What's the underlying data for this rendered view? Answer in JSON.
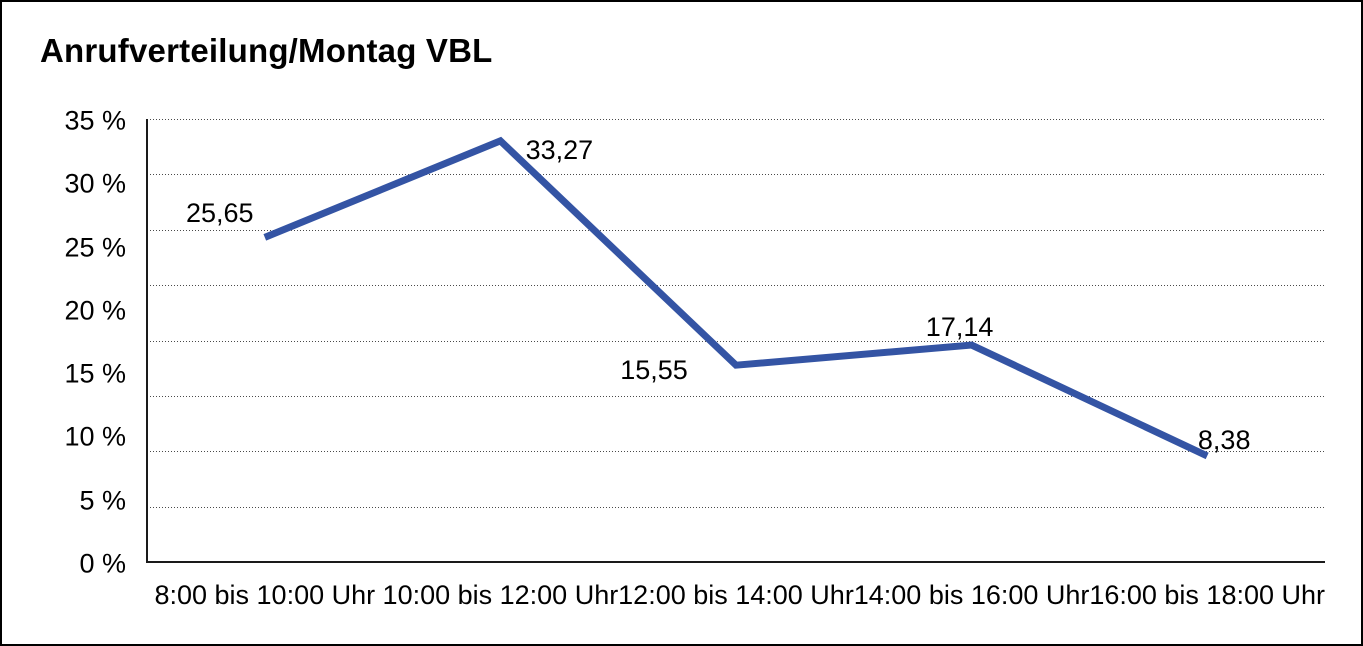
{
  "page": {
    "background_color": "#ffffff",
    "frame_color": "#000000"
  },
  "chart_data": {
    "type": "line",
    "title": "Anrufverteilung/Montag VBL",
    "categories": [
      "8:00 bis 10:00 Uhr",
      "10:00 bis 12:00 Uhr",
      "12:00 bis 14:00 Uhr",
      "14:00 bis 16:00 Uhr",
      "16:00 bis 18:00 Uhr"
    ],
    "values": [
      25.65,
      33.27,
      15.55,
      17.14,
      8.38
    ],
    "point_labels": [
      "25,65",
      "33,27",
      "15,55",
      "17,14",
      "8,38"
    ],
    "y_tick_labels": [
      "35 %",
      "30 %",
      "25 %",
      "20 %",
      "15 %",
      "10 %",
      "5 %",
      "0 %"
    ],
    "ylim": [
      0,
      35
    ],
    "y_tick_step": 5,
    "xlabel": "",
    "ylabel": "",
    "grid": "horizontal-dotted",
    "gridline_count_dotted": 8,
    "legend": "none",
    "line_color": "#3454A4",
    "axis_color": "#1a1a1a",
    "text_color": "#000000",
    "decimal_separator": ","
  }
}
